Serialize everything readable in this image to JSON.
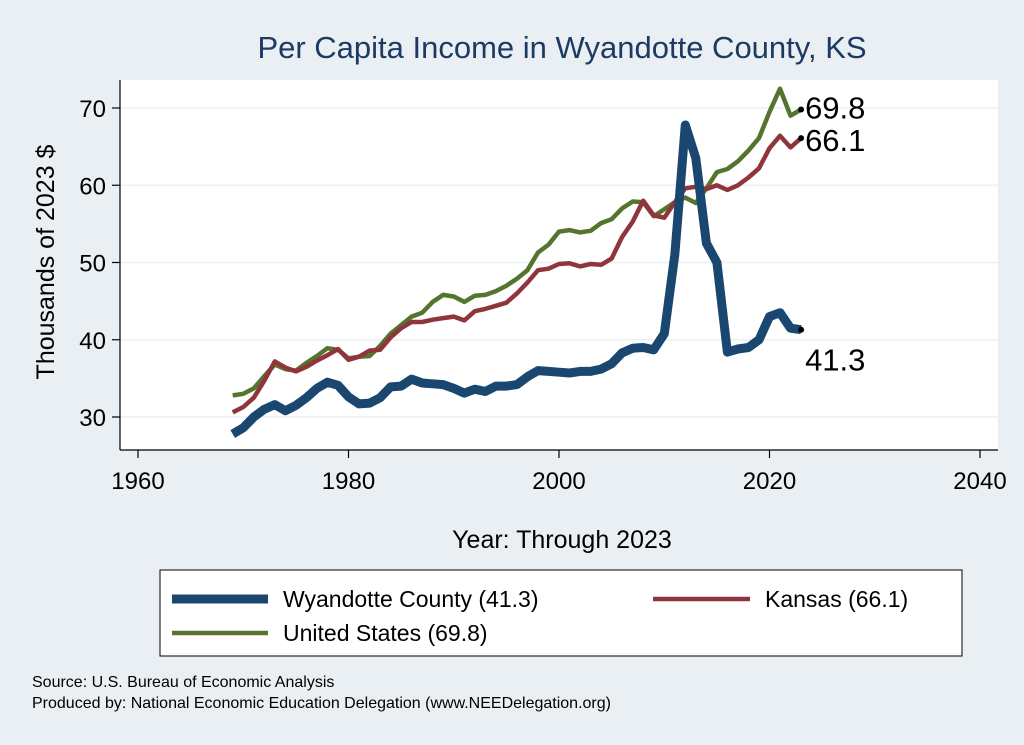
{
  "chart_data": {
    "type": "line",
    "title": "Per Capita Income in Wyandotte County, KS",
    "xlabel": "Year: Through 2023",
    "ylabel": "Thousands of 2023 $",
    "xlim": [
      1960,
      2040
    ],
    "ylim": [
      25,
      75
    ],
    "xticks": [
      1960,
      1980,
      2000,
      2020,
      2040
    ],
    "yticks": [
      30,
      40,
      50,
      60,
      70
    ],
    "grid": "horizontal",
    "legend_position": "bottom",
    "x": [
      1969,
      1970,
      1971,
      1972,
      1973,
      1974,
      1975,
      1976,
      1977,
      1978,
      1979,
      1980,
      1981,
      1982,
      1983,
      1984,
      1985,
      1986,
      1987,
      1988,
      1989,
      1990,
      1991,
      1992,
      1993,
      1994,
      1995,
      1996,
      1997,
      1998,
      1999,
      2000,
      2001,
      2002,
      2003,
      2004,
      2005,
      2006,
      2007,
      2008,
      2009,
      2010,
      2011,
      2012,
      2013,
      2014,
      2015,
      2016,
      2017,
      2018,
      2019,
      2020,
      2021,
      2022,
      2023
    ],
    "series": [
      {
        "name": "Wyandotte County",
        "legend_label": "Wyandotte County (41.3)",
        "end_label": "41.3",
        "color": "#1a476f",
        "values": [
          27.8,
          28.6,
          30.0,
          31.0,
          31.6,
          30.8,
          31.5,
          32.5,
          33.7,
          34.5,
          34.1,
          32.6,
          31.7,
          31.8,
          32.5,
          33.9,
          34.0,
          34.9,
          34.4,
          34.3,
          34.2,
          33.7,
          33.1,
          33.6,
          33.3,
          34.0,
          34.0,
          34.2,
          35.2,
          36.0,
          35.9,
          35.8,
          35.7,
          35.9,
          35.9,
          36.2,
          36.9,
          38.3,
          38.9,
          39.0,
          38.7,
          40.8,
          51.0,
          67.8,
          63.5,
          52.5,
          50.0,
          38.4,
          38.8,
          39.0,
          40.0,
          43.0,
          43.5,
          41.5,
          41.3
        ]
      },
      {
        "name": "Kansas",
        "legend_label": "Kansas (66.1)",
        "end_label": "66.1",
        "color": "#90353b",
        "values": [
          30.6,
          31.3,
          32.5,
          34.7,
          37.2,
          36.4,
          35.9,
          36.5,
          37.3,
          38.0,
          38.8,
          37.4,
          37.8,
          38.6,
          38.7,
          40.3,
          41.5,
          42.3,
          42.3,
          42.6,
          42.8,
          43.0,
          42.5,
          43.7,
          44.0,
          44.4,
          44.8,
          46.0,
          47.4,
          49.0,
          49.2,
          49.8,
          49.9,
          49.5,
          49.8,
          49.7,
          50.5,
          53.3,
          55.3,
          58.0,
          56.1,
          55.8,
          57.8,
          59.6,
          59.8,
          59.5,
          60.0,
          59.4,
          60.0,
          61.0,
          62.2,
          64.8,
          66.4,
          64.9,
          66.1
        ]
      },
      {
        "name": "United States",
        "legend_label": "United States (69.8)",
        "end_label": "69.8",
        "color": "#55752f",
        "values": [
          32.8,
          33.0,
          33.7,
          35.3,
          36.8,
          36.2,
          36.0,
          37.0,
          37.9,
          38.9,
          38.7,
          37.6,
          37.8,
          37.9,
          39.2,
          40.8,
          41.9,
          43.0,
          43.5,
          44.9,
          45.8,
          45.6,
          44.9,
          45.7,
          45.8,
          46.3,
          47.0,
          47.9,
          49.0,
          51.3,
          52.3,
          54.0,
          54.2,
          53.9,
          54.1,
          55.1,
          55.6,
          57.0,
          57.9,
          57.8,
          56.0,
          56.9,
          57.8,
          58.4,
          57.7,
          59.6,
          61.7,
          62.1,
          63.1,
          64.5,
          66.1,
          69.5,
          72.5,
          69.0,
          69.8
        ]
      }
    ]
  },
  "source_line": "Source: U.S. Bureau of Economic Analysis",
  "producer_line": "Produced by: National Economic Education Delegation (www.NEEDelegation.org)"
}
